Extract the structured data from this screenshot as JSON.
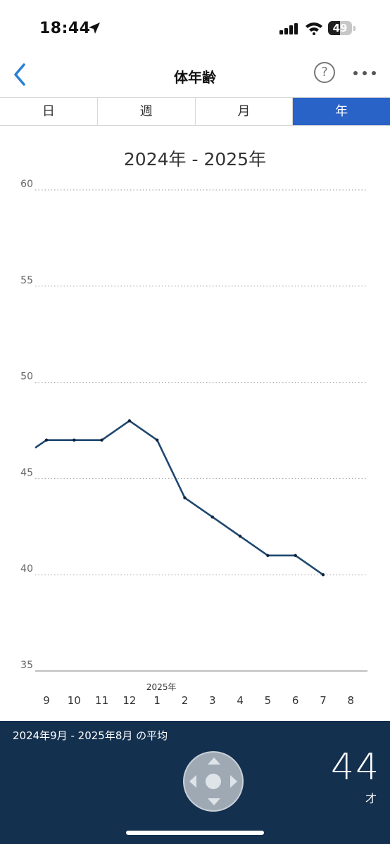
{
  "status": {
    "time": "18:44",
    "battery": "49",
    "battery_level": 0.49
  },
  "nav": {
    "title": "体年齢",
    "help_label": "?"
  },
  "tabs": [
    {
      "label": "日",
      "active": false
    },
    {
      "label": "週",
      "active": false
    },
    {
      "label": "月",
      "active": false
    },
    {
      "label": "年",
      "active": true
    }
  ],
  "range_title": "2024年 - 2025年",
  "chart_data": {
    "type": "line",
    "ylim": [
      35,
      60
    ],
    "y_ticks": [
      60,
      55,
      50,
      45,
      40,
      35
    ],
    "x_ticks": [
      "9",
      "10",
      "11",
      "12",
      "1",
      "2",
      "3",
      "4",
      "5",
      "6",
      "7",
      "8"
    ],
    "year_label": "2025年",
    "year_label_at": "1",
    "series": [
      {
        "x": [
          "9",
          "10",
          "11",
          "12",
          "1",
          "2",
          "3",
          "4",
          "5",
          "6",
          "7"
        ],
        "values": [
          47,
          47,
          47,
          48,
          47,
          44,
          43,
          42,
          41,
          41,
          40
        ],
        "start_value": 46.6
      }
    ],
    "line_color": "#1e4770",
    "grid": "dotted"
  },
  "footer": {
    "avg_label": "2024年9月 - 2025年8月 の平均",
    "avg_value": "44",
    "avg_unit": "才"
  }
}
